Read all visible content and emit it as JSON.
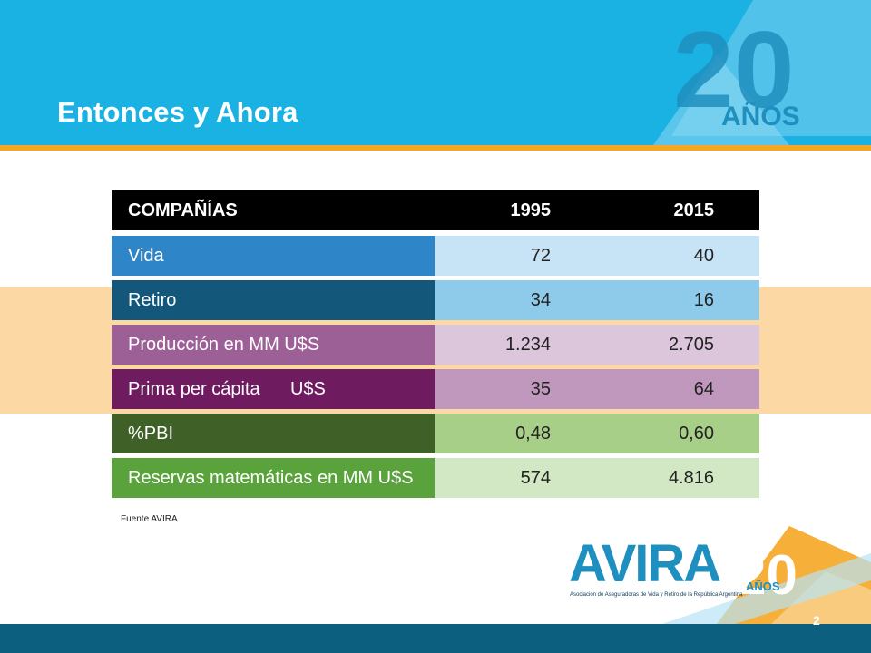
{
  "slide": {
    "title": "Entonces y Ahora",
    "source": "Fuente AVIRA",
    "page_number": "2"
  },
  "badge": {
    "number": "20",
    "label": "AÑOS"
  },
  "logo": {
    "name": "AVIRA",
    "number": "20",
    "years": "AÑOS",
    "tagline": "Asociación de Aseguradoras de Vida y Retiro de la República Argentina"
  },
  "table": {
    "headers": {
      "label": "COMPAÑÍAS",
      "col1": "1995",
      "col2": "2015"
    },
    "rows": [
      {
        "label": "Vida",
        "v1995": "72",
        "v2015": "40",
        "label_color": "#2e86c8",
        "value_color": "#c6e4f5"
      },
      {
        "label": "Retiro",
        "v1995": "34",
        "v2015": "16",
        "label_color": "#13587a",
        "value_color": "#8ecbeb"
      },
      {
        "label": "Producción en MM U$S",
        "v1995": "1.234",
        "v2015": "2.705",
        "label_color": "#9c5f96",
        "value_color": "#dcc6dc"
      },
      {
        "label": "Prima per cápita      U$S",
        "v1995": "35",
        "v2015": "64",
        "label_color": "#6e1b5f",
        "value_color": "#c098be"
      },
      {
        "label": "%PBI",
        "v1995": "0,48",
        "v2015": "0,60",
        "label_color": "#3f6128",
        "value_color": "#a8cf88"
      },
      {
        "label": "Reservas matemáticas en MM U$S",
        "v1995": "574",
        "v2015": "4.816",
        "label_color": "#5aa23c",
        "value_color": "#d2e8c4"
      }
    ]
  }
}
